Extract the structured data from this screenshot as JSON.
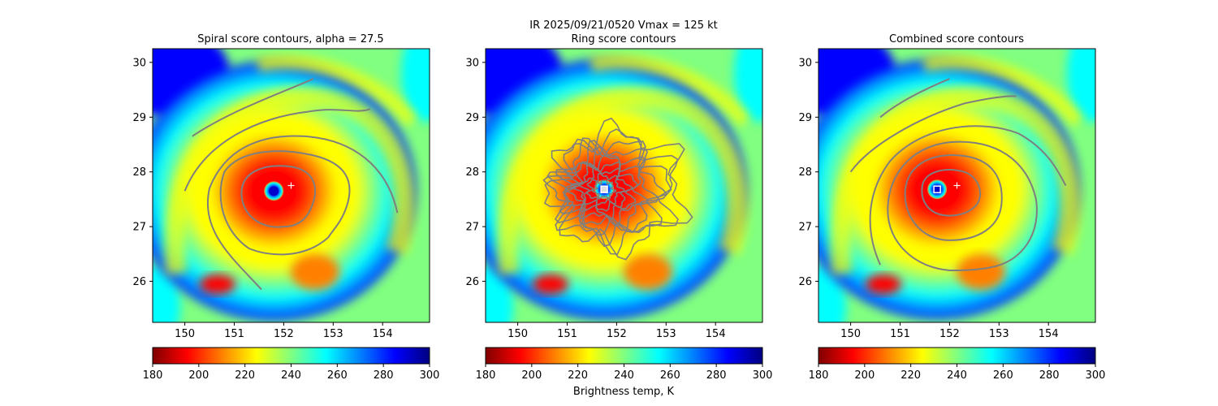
{
  "figure": {
    "suptitle_line1": "IR  2025/09/21/0520    Vmax = 125 kt",
    "colorbar_label": "Brightness temp, K"
  },
  "chart_data": [
    {
      "type": "heatmap",
      "title": "Spiral score contours, alpha = 27.5",
      "xlim": [
        149.35,
        154.95
      ],
      "ylim": [
        25.25,
        30.25
      ],
      "xticks": [
        150,
        151,
        152,
        153,
        154
      ],
      "yticks": [
        26,
        27,
        28,
        29,
        30
      ],
      "storm_center": [
        151.8,
        27.65
      ],
      "best_track_marker": [
        152.15,
        27.75
      ],
      "contour_overlay": "spiral",
      "center_marker": "blue-dot"
    },
    {
      "type": "heatmap",
      "title": "Ring score contours",
      "xlim": [
        149.35,
        154.95
      ],
      "ylim": [
        25.25,
        30.25
      ],
      "xticks": [
        150,
        151,
        152,
        153,
        154
      ],
      "yticks": [
        26,
        27,
        28,
        29,
        30
      ],
      "storm_center": [
        151.75,
        27.68
      ],
      "best_track_marker": [
        151.75,
        27.68
      ],
      "contour_overlay": "ring",
      "center_marker": "white-square"
    },
    {
      "type": "heatmap",
      "title": "Combined score contours",
      "xlim": [
        149.35,
        154.95
      ],
      "ylim": [
        25.25,
        30.25
      ],
      "xticks": [
        150,
        151,
        152,
        153,
        154
      ],
      "yticks": [
        26,
        27,
        28,
        29,
        30
      ],
      "storm_center": [
        151.75,
        27.68
      ],
      "best_track_marker": [
        152.15,
        27.75
      ],
      "contour_overlay": "combined",
      "center_marker": "blue-square"
    }
  ],
  "colorbar": {
    "range": [
      180,
      300
    ],
    "ticks": [
      180,
      200,
      220,
      240,
      260,
      280,
      300
    ],
    "colormap": "jet_r",
    "colors": [
      "#800000",
      "#ff0000",
      "#ff8000",
      "#ffff00",
      "#80ff80",
      "#00ffff",
      "#0080ff",
      "#0000ff",
      "#000080"
    ]
  },
  "colors": {
    "contour": "#7f7f7f",
    "marker": "#ffffff"
  }
}
